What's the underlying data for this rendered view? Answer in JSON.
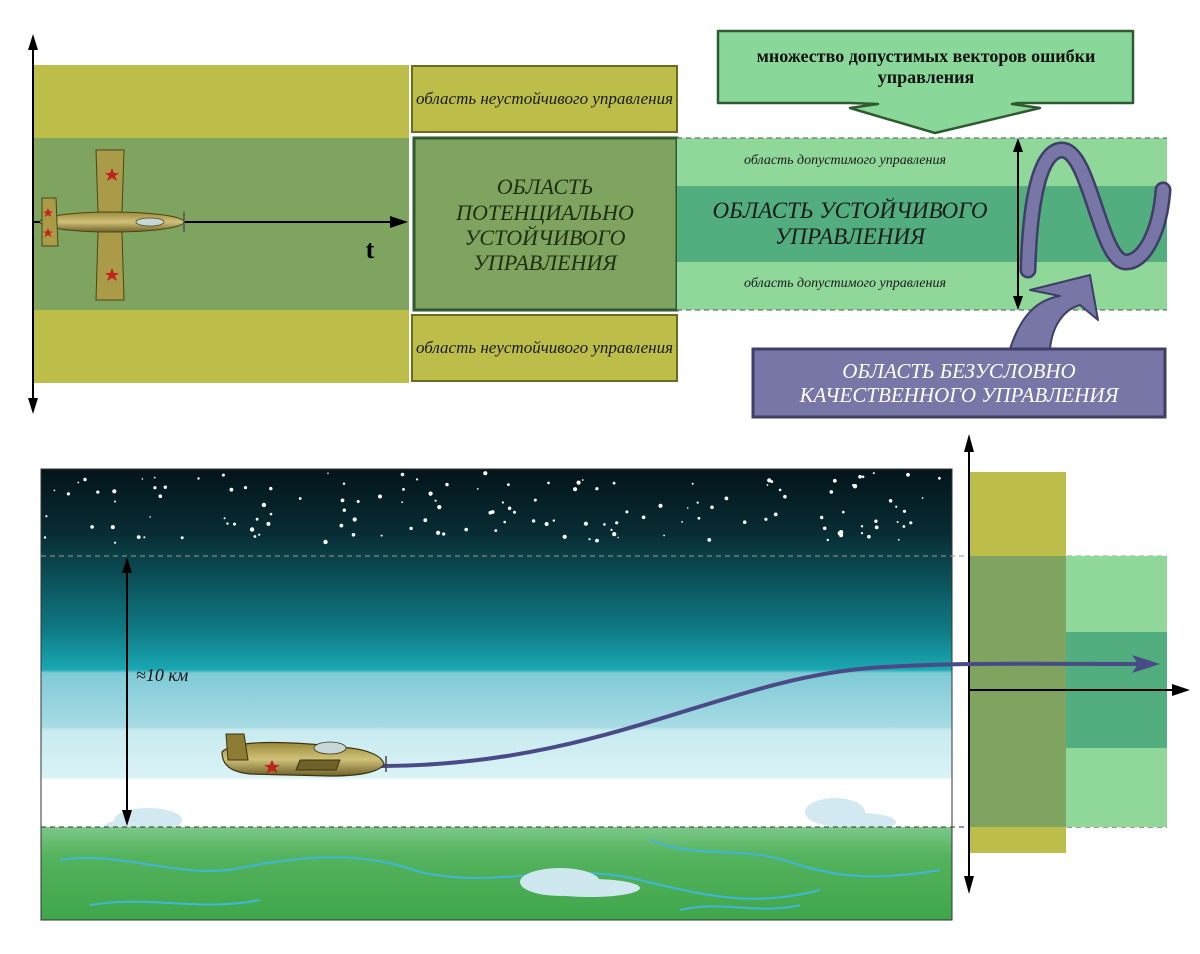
{
  "top": {
    "time_axis_label": "t",
    "unstable_top": "область неустойчивого управления",
    "unstable_bottom": "область неустойчивого управления",
    "potential_stable": "ОБЛАСТЬ ПОТЕНЦИАЛЬНО УСТОЙЧИВОГО УПРАВЛЕНИЯ",
    "admissible_top": "область допустимого управления",
    "admissible_bottom": "область допустимого управления",
    "stable": "ОБЛАСТЬ УСТОЙЧИВОГО УПРАВЛЕНИЯ",
    "error_vectors_callout": "множество допустимых векторов ошибки управления",
    "unconditional_quality": "ОБЛАСТЬ БЕЗУСЛОВНО КАЧЕСТВЕННОГО УПРАВЛЕНИЯ"
  },
  "bottom": {
    "altitude_label": "≈10 км"
  },
  "colors": {
    "olive": "#bdbd4a",
    "olive_dark_green": "#7fa460",
    "light_green": "#8fd89a",
    "mid_green": "#52ad7f",
    "purple": "#6f6e9e",
    "callout_green": "#8ad79a"
  }
}
